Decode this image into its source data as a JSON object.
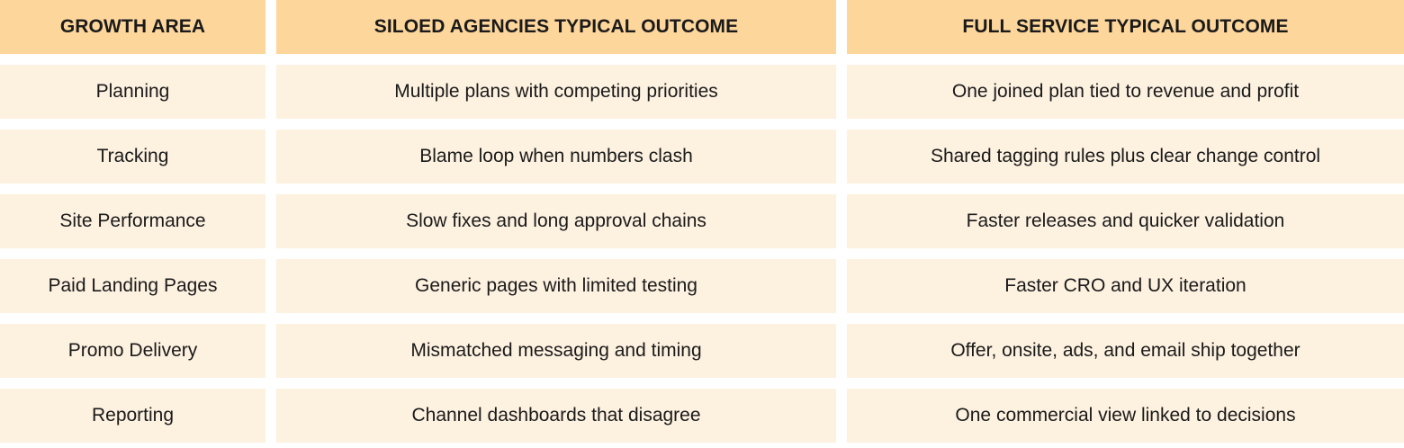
{
  "table": {
    "headers": [
      "GROWTH AREA",
      "SILOED AGENCIES TYPICAL OUTCOME",
      "FULL SERVICE TYPICAL OUTCOME"
    ],
    "rows": [
      [
        "Planning",
        "Multiple plans with competing priorities",
        "One joined plan tied to revenue and profit"
      ],
      [
        "Tracking",
        "Blame loop when numbers clash",
        "Shared tagging rules plus clear change control"
      ],
      [
        "Site Performance",
        "Slow fixes and long approval chains",
        "Faster releases and quicker validation"
      ],
      [
        "Paid Landing Pages",
        "Generic pages with limited testing",
        "Faster CRO and UX iteration"
      ],
      [
        "Promo Delivery",
        "Mismatched messaging and timing",
        "Offer, onsite, ads, and email ship together"
      ],
      [
        "Reporting",
        "Channel dashboards that disagree",
        "One commercial view linked to decisions"
      ]
    ]
  },
  "colors": {
    "header_bg": "#fdd69c",
    "row_bg": "#fdf1e0",
    "text": "#1a1a1a"
  }
}
